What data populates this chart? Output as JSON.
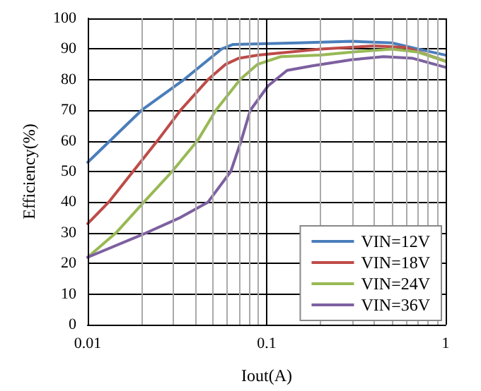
{
  "chart_data": {
    "type": "line",
    "xlabel": "Iout(A)",
    "ylabel": "Efficiency(%)",
    "log": "x",
    "grid": true,
    "legend": "bottom right",
    "marker": "none",
    "line_style": "solid",
    "xlim": [
      0.01,
      1
    ],
    "ylim": [
      0,
      100
    ],
    "xticks": [
      0.01,
      {
        "value": 0.02,
        "label": null
      },
      {
        "value": 0.03,
        "label": null
      },
      {
        "value": 0.04,
        "label": null
      },
      {
        "value": 0.05,
        "label": null
      },
      {
        "value": 0.06,
        "label": null
      },
      {
        "value": 0.07,
        "label": null
      },
      {
        "value": 0.08,
        "label": null
      },
      {
        "value": 0.09,
        "label": null
      },
      0.1,
      {
        "value": 0.2,
        "label": null
      },
      {
        "value": 0.3,
        "label": null
      },
      {
        "value": 0.4,
        "label": null
      },
      {
        "value": 0.5,
        "label": null
      },
      {
        "value": 0.6,
        "label": null
      },
      {
        "value": 0.7,
        "label": null
      },
      {
        "value": 0.8,
        "label": null
      },
      {
        "value": 0.9,
        "label": null
      },
      1
    ],
    "yticks": [
      0,
      10,
      20,
      30,
      40,
      50,
      60,
      70,
      80,
      90,
      100
    ],
    "series": [
      {
        "name": "VIN=12V",
        "color": "#4a7ebb",
        "x": [
          0.01,
          0.02,
          0.0345,
          0.056,
          0.065,
          0.15,
          0.3,
          0.5,
          0.7,
          1
        ],
        "values": [
          53,
          70,
          80,
          90,
          91.5,
          92,
          92.5,
          92,
          90,
          88
        ]
      },
      {
        "name": "VIN=18V",
        "color": "#be4b48",
        "x": [
          0.01,
          0.0131,
          0.0245,
          0.033,
          0.047,
          0.059,
          0.07,
          0.09,
          0.2,
          0.4,
          0.6,
          1
        ],
        "values": [
          33,
          40,
          60,
          70,
          80,
          85,
          87,
          88,
          90,
          91,
          90.5,
          86
        ]
      },
      {
        "name": "VIN=24V",
        "color": "#98b954",
        "x": [
          0.01,
          0.0144,
          0.0206,
          0.0296,
          0.041,
          0.052,
          0.071,
          0.089,
          0.12,
          0.2,
          0.3,
          0.5,
          0.7,
          1
        ],
        "values": [
          22,
          30,
          40,
          50,
          60,
          70,
          80,
          85,
          87.5,
          88,
          89,
          90,
          89,
          86
        ]
      },
      {
        "name": "VIN=36V",
        "color": "#7d60a0",
        "x": [
          0.01,
          0.0213,
          0.033,
          0.047,
          0.063,
          0.072,
          0.081,
          0.102,
          0.13,
          0.18,
          0.3,
          0.45,
          0.65,
          1
        ],
        "values": [
          22,
          30,
          35,
          40,
          50,
          60,
          70,
          78,
          83,
          84.5,
          86.5,
          87.5,
          87,
          84
        ]
      }
    ]
  }
}
